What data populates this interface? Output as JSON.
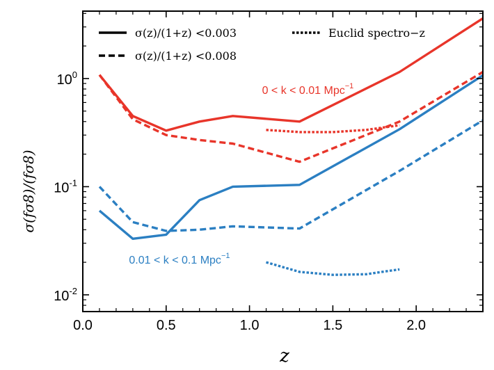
{
  "chart_data": {
    "type": "line",
    "xlabel": "z",
    "ylabel": "σ(fσ8)/(fσ8)",
    "yscale": "log",
    "xlim": [
      0.0,
      2.4
    ],
    "ylim": [
      0.007,
      4.2
    ],
    "x_ticks": [
      {
        "value": 0.0,
        "label": "0.0"
      },
      {
        "value": 0.5,
        "label": "0.5"
      },
      {
        "value": 1.0,
        "label": "1.0"
      },
      {
        "value": 1.5,
        "label": "1.5"
      },
      {
        "value": 2.0,
        "label": "2.0"
      }
    ],
    "y_ticks": [
      {
        "value": 0.01,
        "base": "10",
        "exp": "-2"
      },
      {
        "value": 0.1,
        "base": "10",
        "exp": "-1"
      },
      {
        "value": 1,
        "base": "10",
        "exp": "0"
      }
    ],
    "legend": [
      {
        "label": "σ(z)/(1+z) <0.003",
        "dash": "solid"
      },
      {
        "label": "σ(z)/(1+z) <0.008",
        "dash": "dashed"
      },
      {
        "label": "Euclid spectro−z",
        "dash": "dotted"
      }
    ],
    "legend_position": "top",
    "grid": false,
    "annotations": [
      {
        "text": "0 < k < 0.01 Mpc",
        "sup": "−1",
        "color": "#e8352a",
        "x": 1.35,
        "y": 0.72
      },
      {
        "text": "0.01 < k < 0.1 Mpc",
        "sup": "−1",
        "color": "#2b7fc2",
        "x": 0.58,
        "y": 0.0195
      }
    ],
    "series": [
      {
        "group": "0 < k < 0.01 Mpc−1",
        "dash": "solid",
        "color": "#e8352a",
        "x": [
          0.1,
          0.3,
          0.5,
          0.7,
          0.9,
          1.3,
          1.9,
          2.4
        ],
        "y": [
          1.08,
          0.45,
          0.33,
          0.4,
          0.45,
          0.4,
          1.15,
          3.6
        ]
      },
      {
        "group": "0 < k < 0.01 Mpc−1",
        "dash": "dashed",
        "color": "#e8352a",
        "x": [
          0.1,
          0.3,
          0.5,
          0.7,
          0.9,
          1.3,
          1.9,
          2.4
        ],
        "y": [
          1.08,
          0.42,
          0.3,
          0.27,
          0.25,
          0.17,
          0.4,
          1.15
        ]
      },
      {
        "group": "0 < k < 0.01 Mpc−1",
        "dash": "dotted",
        "color": "#e8352a",
        "x": [
          1.1,
          1.3,
          1.5,
          1.7,
          1.9
        ],
        "y": [
          0.335,
          0.32,
          0.32,
          0.335,
          0.37
        ]
      },
      {
        "group": "0.01 < k < 0.1 Mpc−1",
        "dash": "solid",
        "color": "#2b7fc2",
        "x": [
          0.1,
          0.3,
          0.5,
          0.7,
          0.9,
          1.3,
          1.9,
          2.4
        ],
        "y": [
          0.06,
          0.033,
          0.036,
          0.075,
          0.1,
          0.104,
          0.34,
          1.07
        ]
      },
      {
        "group": "0.01 < k < 0.1 Mpc−1",
        "dash": "dashed",
        "color": "#2b7fc2",
        "x": [
          0.1,
          0.3,
          0.5,
          0.7,
          0.9,
          1.3,
          1.9,
          2.4
        ],
        "y": [
          0.1,
          0.047,
          0.039,
          0.04,
          0.043,
          0.041,
          0.14,
          0.41
        ]
      },
      {
        "group": "0.01 < k < 0.1 Mpc−1",
        "dash": "dotted",
        "color": "#2b7fc2",
        "x": [
          1.1,
          1.3,
          1.5,
          1.7,
          1.9
        ],
        "y": [
          0.02,
          0.0163,
          0.0153,
          0.0155,
          0.0172
        ]
      }
    ]
  }
}
